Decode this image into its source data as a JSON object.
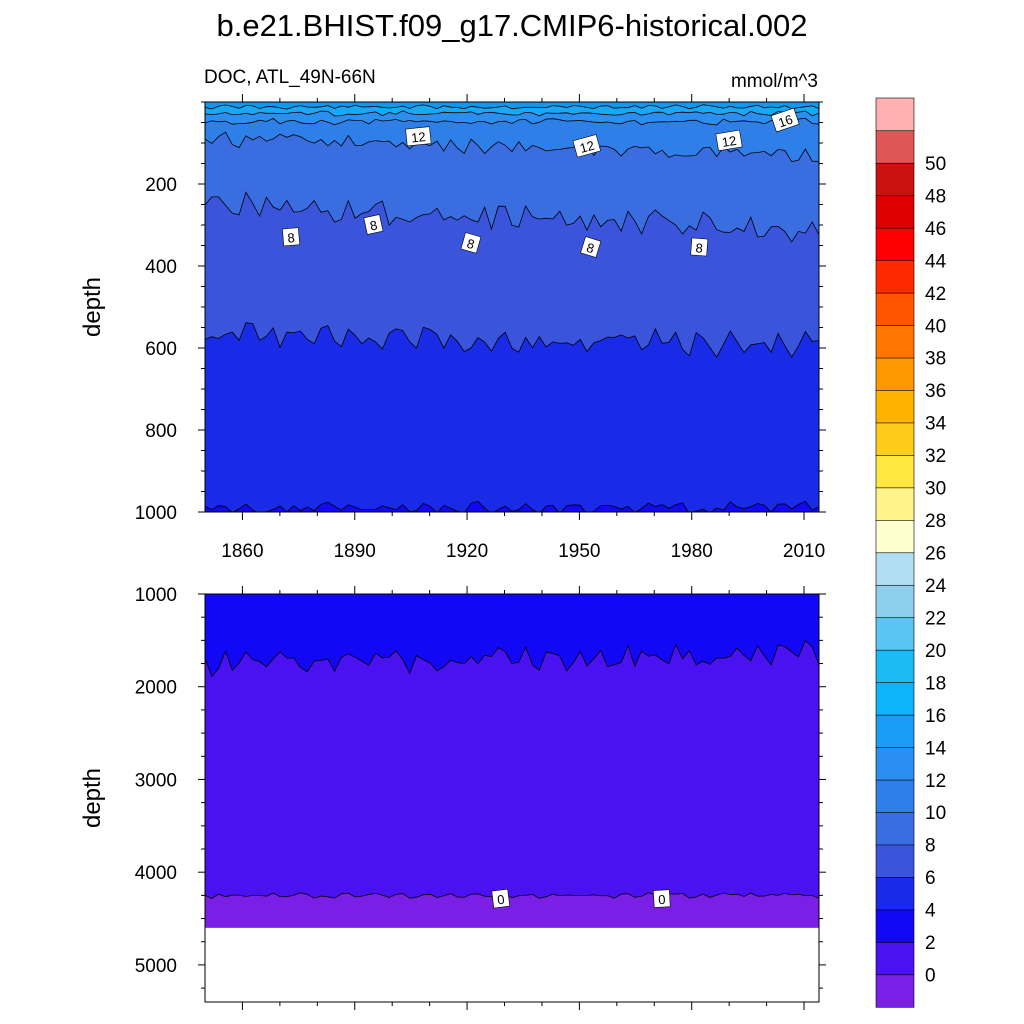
{
  "chart_data": {
    "type": "contour",
    "title": "b.e21.BHIST.f09_g17.CMIP6-historical.002",
    "subtitle_left": "DOC, ATL_49N-66N",
    "units": "mmol/m^3",
    "colorbar": {
      "levels": [
        0,
        2,
        4,
        6,
        8,
        10,
        12,
        14,
        16,
        18,
        20,
        22,
        24,
        26,
        28,
        30,
        32,
        34,
        36,
        38,
        40,
        42,
        44,
        46,
        48,
        50
      ],
      "labels": [
        "0",
        "2",
        "4",
        "6",
        "8",
        "10",
        "12",
        "14",
        "16",
        "18",
        "20",
        "22",
        "24",
        "26",
        "28",
        "30",
        "32",
        "34",
        "36",
        "38",
        "40",
        "42",
        "44",
        "46",
        "48",
        "50"
      ],
      "colors": [
        "#7b1fe6",
        "#4a12f0",
        "#1208f5",
        "#1a2be8",
        "#3a55dc",
        "#3a6ee0",
        "#2f7fe8",
        "#2a8ff0",
        "#1a9ef5",
        "#0db3fb",
        "#1bbcf5",
        "#5ac4f2",
        "#8fcfee",
        "#b2def3",
        "#ffffd0",
        "#fff38a",
        "#ffe640",
        "#ffcc1a",
        "#ffb300",
        "#ff9800",
        "#ff7700",
        "#ff5500",
        "#ff2a00",
        "#ff0000",
        "#dd0000",
        "#cc1111",
        "#e05555",
        "#ffb0b0"
      ]
    },
    "panels": [
      {
        "name": "upper",
        "xlabel": "",
        "ylabel": "depth",
        "xlim": [
          1850,
          2014
        ],
        "ylim": [
          0,
          1000
        ],
        "y_inverted": true,
        "xticks": [
          1860,
          1890,
          1920,
          1950,
          1980,
          2010
        ],
        "xtick_labels": [
          "1860",
          "1890",
          "1920",
          "1950",
          "1980",
          "2010"
        ],
        "yticks": [
          200,
          400,
          600,
          800,
          1000
        ],
        "ytick_labels": [
          "200",
          "400",
          "600",
          "800",
          "1000"
        ],
        "contour_labels": [
          {
            "text": "16",
            "x": 2005,
            "y": 45
          },
          {
            "text": "12",
            "x": 1907,
            "y": 85
          },
          {
            "text": "12",
            "x": 1952,
            "y": 108
          },
          {
            "text": "12",
            "x": 1990,
            "y": 95
          },
          {
            "text": "8",
            "x": 1873,
            "y": 330
          },
          {
            "text": "8",
            "x": 1895,
            "y": 300
          },
          {
            "text": "8",
            "x": 1921,
            "y": 345
          },
          {
            "text": "8",
            "x": 1953,
            "y": 355
          },
          {
            "text": "8",
            "x": 1982,
            "y": 355
          }
        ]
      },
      {
        "name": "lower",
        "ylabel": "depth",
        "xlim": [
          1850,
          2014
        ],
        "ylim": [
          1000,
          5400
        ],
        "y_inverted": true,
        "yticks": [
          1000,
          2000,
          3000,
          4000,
          5000
        ],
        "ytick_labels": [
          "1000",
          "2000",
          "3000",
          "4000",
          "5000"
        ],
        "data_bottom_depth": 4600,
        "contour_labels": [
          {
            "text": "0",
            "x": 1929,
            "y": 4290
          },
          {
            "text": "0",
            "x": 1972,
            "y": 4290
          }
        ]
      }
    ]
  }
}
